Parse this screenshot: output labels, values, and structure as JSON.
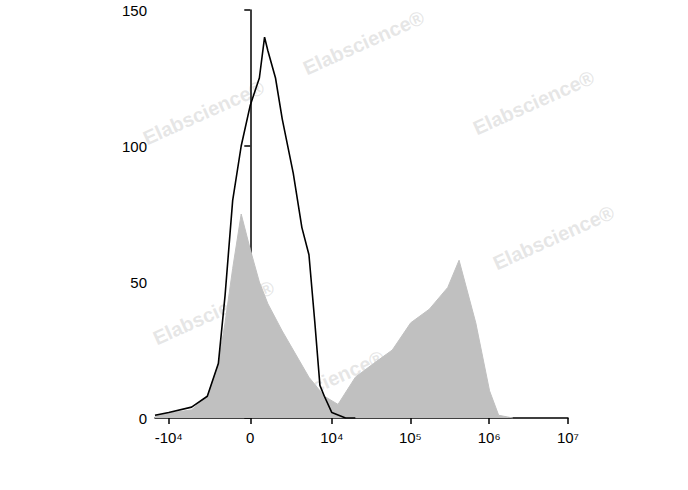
{
  "chart_data": {
    "type": "histogram",
    "annotations": [
      "Elabscience®"
    ],
    "xlim": [
      -15000,
      10000000
    ],
    "xticks": [
      {
        "value": -10000,
        "label": "-10⁴"
      },
      0,
      {
        "value": 10000,
        "label": "10⁴"
      },
      {
        "value": 100000,
        "label": "10⁵"
      },
      {
        "value": 1000000,
        "label": "10⁶"
      },
      {
        "value": 10000000,
        "label": "10⁷"
      }
    ],
    "ylim": [
      0,
      150
    ],
    "yticks": [
      0,
      50,
      100,
      150
    ],
    "grid": false,
    "series": [
      {
        "type": "area",
        "color": "#c0c0c0",
        "x": [
          -15000,
          -5000,
          -3000,
          -2000,
          -1500,
          -1000,
          -500,
          0,
          500,
          1000,
          2000,
          3000,
          5000,
          8000,
          12000,
          20000,
          34000,
          59000,
          101000,
          174000,
          298000,
          415000,
          676000,
          1011000,
          1320000,
          2000000
        ],
        "values": [
          1,
          3,
          8,
          20,
          35,
          55,
          75,
          62,
          50,
          42,
          32,
          25,
          15,
          8,
          5,
          15,
          20,
          25,
          35,
          40,
          48,
          58,
          35,
          10,
          1,
          0
        ]
      },
      {
        "type": "line",
        "color": "#000000",
        "x": [
          -15000,
          -10000,
          -5000,
          -3000,
          -2000,
          -1500,
          -1000,
          -500,
          0,
          500,
          800,
          1000,
          1500,
          2000,
          3000,
          4000,
          5000,
          6000,
          7000,
          8000,
          10000,
          15000,
          20000
        ],
        "values": [
          1,
          2,
          4,
          8,
          20,
          45,
          80,
          100,
          115,
          125,
          140,
          135,
          125,
          110,
          90,
          70,
          60,
          35,
          12,
          8,
          2,
          0,
          0
        ]
      }
    ]
  }
}
